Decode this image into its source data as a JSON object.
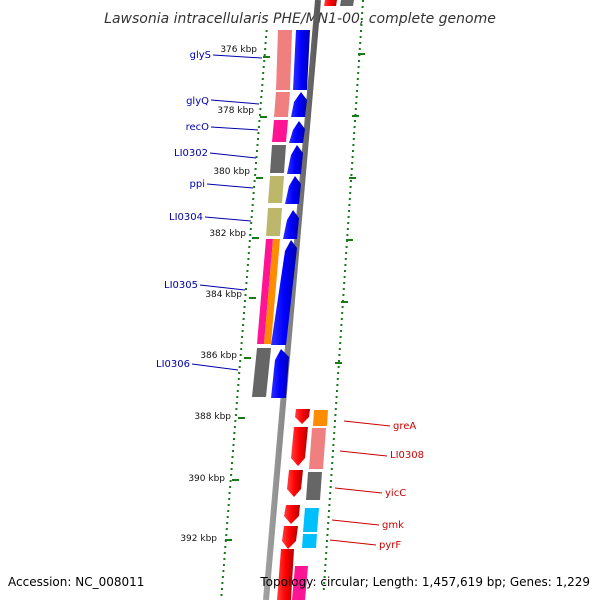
{
  "title": "Lawsonia intracellularis PHE/MN1-00, complete genome",
  "footer": {
    "accession": "Accession: NC_008011",
    "topology": "Topology: circular; Length: 1,457,619 bp; Genes: 1,229"
  },
  "colors": {
    "backbone": "#808080",
    "tick": "#1a7a1a",
    "forward_cds": "#0000ff",
    "reverse_cds": "#ff0000",
    "forward_label": "#0000aa",
    "reverse_label": "#cc0000",
    "cog_salmon": "#f08080",
    "cog_magenta": "#ff1493",
    "cog_gray": "#666666",
    "cog_khaki": "#bdb76b",
    "cog_orange": "#ff8c00",
    "cog_cyan": "#00bfff"
  },
  "ticks": [
    {
      "label": "376 kbp"
    },
    {
      "label": "378 kbp"
    },
    {
      "label": "380 kbp"
    },
    {
      "label": "382 kbp"
    },
    {
      "label": "384 kbp"
    },
    {
      "label": "386 kbp"
    },
    {
      "label": "388 kbp"
    },
    {
      "label": "390 kbp"
    },
    {
      "label": "392 kbp"
    }
  ],
  "forward_genes": [
    {
      "name": "glyS",
      "cog_color": "salmon"
    },
    {
      "name": "glyQ",
      "cog_color": "salmon"
    },
    {
      "name": "recO",
      "cog_color": "magenta"
    },
    {
      "name": "LI0302",
      "cog_color": "gray"
    },
    {
      "name": "ppi",
      "cog_color": "khaki"
    },
    {
      "name": "LI0304",
      "cog_color": "khaki"
    },
    {
      "name": "LI0305",
      "cog_color": "magenta-orange"
    },
    {
      "name": "LI0306",
      "cog_color": "gray"
    }
  ],
  "reverse_genes": [
    {
      "name": "greA",
      "cog_color": "orange"
    },
    {
      "name": "LI0308",
      "cog_color": "salmon"
    },
    {
      "name": "yicC",
      "cog_color": "gray"
    },
    {
      "name": "gmk",
      "cog_color": "cyan"
    },
    {
      "name": "pyrF",
      "cog_color": "cyan"
    }
  ]
}
